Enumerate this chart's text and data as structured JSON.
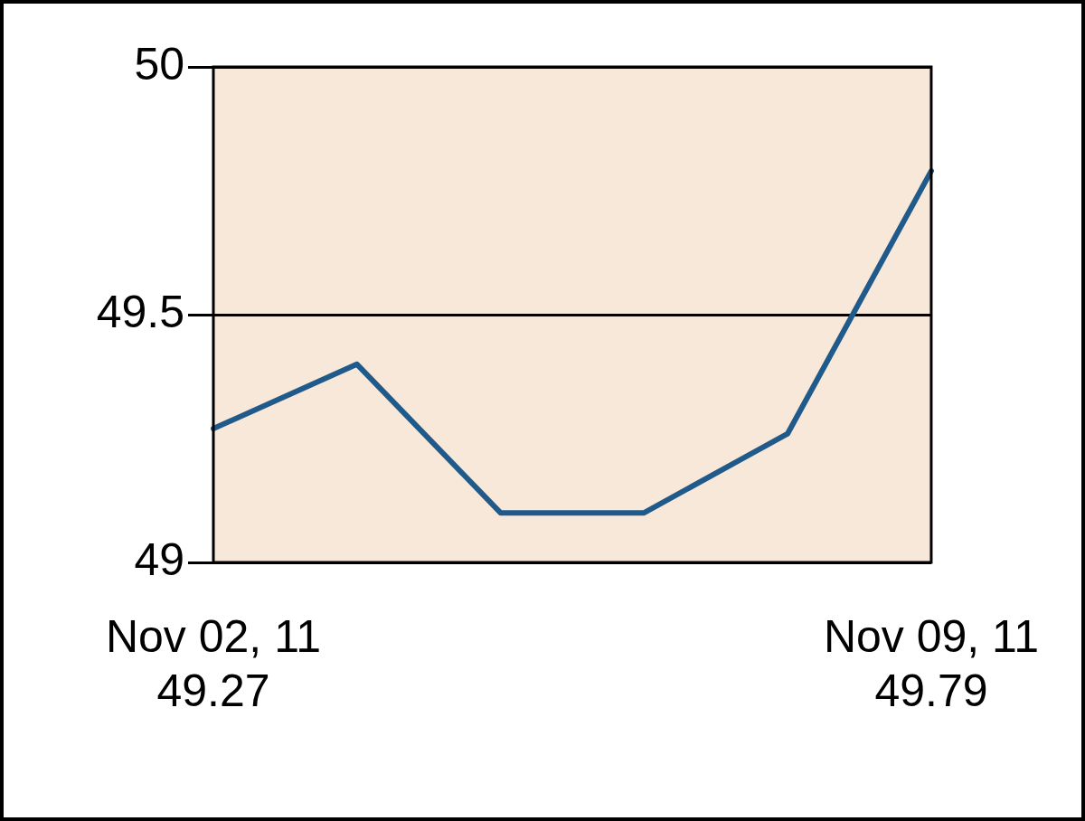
{
  "chart_data": {
    "type": "line",
    "categories": [
      "Nov 02, 11",
      null,
      null,
      null,
      null,
      "Nov 09, 11"
    ],
    "series": [
      {
        "color": "#1f5a8a",
        "values": [
          49.27,
          49.4,
          49.1,
          49.1,
          49.26,
          49.79
        ],
        "value_labels": [
          "49.27",
          null,
          null,
          null,
          null,
          "49.79"
        ]
      }
    ],
    "ylim": [
      49,
      50
    ],
    "yticks": [
      49,
      49.5,
      50
    ],
    "grid": "y",
    "legend": false,
    "marker": "none",
    "line_style": "solid"
  }
}
